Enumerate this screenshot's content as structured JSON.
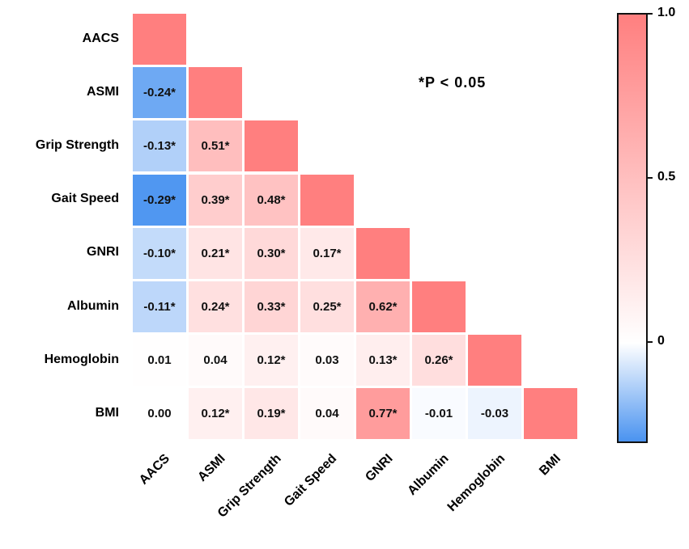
{
  "chart_data": {
    "type": "heatmap",
    "title": "",
    "variables": [
      "AACS",
      "ASMI",
      "Grip Strength",
      "Gait Speed",
      "GNRI",
      "Albumin",
      "Hemoglobin",
      "BMI"
    ],
    "matrix_lower": [
      [
        1.0
      ],
      [
        -0.24,
        1.0
      ],
      [
        -0.13,
        0.51,
        1.0
      ],
      [
        -0.29,
        0.39,
        0.48,
        1.0
      ],
      [
        -0.1,
        0.21,
        0.3,
        0.17,
        1.0
      ],
      [
        -0.11,
        0.24,
        0.33,
        0.25,
        0.62,
        1.0
      ],
      [
        0.01,
        0.04,
        0.12,
        0.03,
        0.13,
        0.26,
        1.0
      ],
      [
        0.0,
        0.12,
        0.19,
        0.04,
        0.77,
        -0.01,
        -0.03,
        1.0
      ]
    ],
    "labels_lower": [
      [
        ""
      ],
      [
        "-0.24*",
        ""
      ],
      [
        "-0.13*",
        "0.51*",
        ""
      ],
      [
        "-0.29*",
        "0.39*",
        "0.48*",
        ""
      ],
      [
        "-0.10*",
        "0.21*",
        "0.30*",
        "0.17*",
        ""
      ],
      [
        "-0.11*",
        "0.24*",
        "0.33*",
        "0.25*",
        "0.62*",
        ""
      ],
      [
        "0.01",
        "0.04",
        "0.12*",
        "0.03",
        "0.13*",
        "0.26*",
        ""
      ],
      [
        "0.00",
        "0.12*",
        "0.19*",
        "0.04",
        "0.77*",
        "-0.01",
        "-0.03",
        ""
      ]
    ],
    "colorbar": {
      "min": -0.3,
      "max": 1.0,
      "ticks": [
        1.0,
        0.5,
        0
      ],
      "tick_labels": [
        "1.0",
        "0.5",
        "0"
      ]
    },
    "colors": {
      "positive": "#FF7F7F",
      "zero": "#FFFFFF",
      "negative": "#4A93F0"
    },
    "annotation": "*P < 0.05"
  }
}
